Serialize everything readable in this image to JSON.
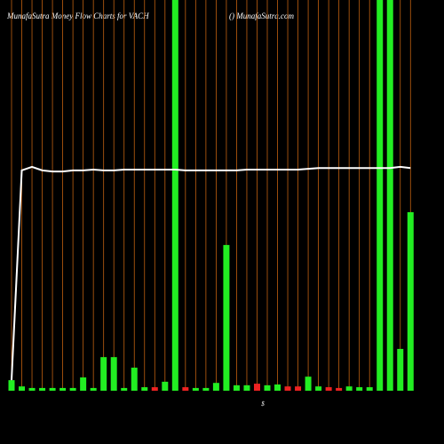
{
  "chart_data": {
    "type": "bar",
    "title": "MunafaSutra  Money Flow  Charts for VACH",
    "subtitle": "() MunafaSutra.com",
    "x_label": "$",
    "categories": [
      null,
      null,
      null,
      null,
      null,
      null,
      null,
      null,
      null,
      null,
      null,
      null,
      null,
      null,
      null,
      null,
      null,
      null,
      null,
      null,
      null,
      null,
      null,
      null,
      null,
      null,
      null,
      null,
      null,
      null,
      null,
      null,
      null,
      null,
      null,
      null,
      null,
      null,
      null,
      null
    ],
    "values": [
      2.7,
      1.1,
      0.7,
      0.7,
      0.7,
      0.7,
      0.7,
      3.4,
      0.7,
      8.6,
      8.6,
      0.7,
      5.9,
      0.9,
      0.9,
      2.3,
      100,
      0.9,
      0.7,
      0.7,
      2,
      37.3,
      1.4,
      1.4,
      1.8,
      1.4,
      1.6,
      1.1,
      1.1,
      3.6,
      1.1,
      0.9,
      0.7,
      1.1,
      0.9,
      0.9,
      100,
      100,
      10.7,
      45.7
    ],
    "colors": [
      "#22ee22",
      "#22ee22",
      "#22ee22",
      "#22ee22",
      "#22ee22",
      "#22ee22",
      "#22ee22",
      "#22ee22",
      "#22ee22",
      "#22ee22",
      "#22ee22",
      "#22ee22",
      "#22ee22",
      "#22ee22",
      "#ee2222",
      "#22ee22",
      "#22ee22",
      "#ee2222",
      "#22ee22",
      "#22ee22",
      "#22ee22",
      "#22ee22",
      "#22ee22",
      "#22ee22",
      "#ee2222",
      "#22ee22",
      "#22ee22",
      "#ee2222",
      "#ee2222",
      "#22ee22",
      "#22ee22",
      "#ee2222",
      "#ee2222",
      "#22ee22",
      "#22ee22",
      "#22ee22",
      "#22ee22",
      "#22ee22",
      "#22ee22",
      "#22ee22"
    ],
    "line": {
      "color": "#ffffff",
      "values": [
        2.7,
        56.4,
        57.3,
        56.4,
        56.1,
        56.1,
        56.4,
        56.4,
        56.6,
        56.4,
        56.4,
        56.6,
        56.6,
        56.6,
        56.6,
        56.6,
        56.6,
        56.4,
        56.4,
        56.4,
        56.4,
        56.4,
        56.4,
        56.6,
        56.6,
        56.6,
        56.6,
        56.6,
        56.6,
        56.8,
        57.0,
        57.0,
        57.0,
        57.0,
        57.0,
        57.0,
        57.0,
        57.0,
        57.3,
        57.0
      ]
    },
    "grid_color": "#c06010",
    "ylim": [
      0,
      100
    ]
  }
}
